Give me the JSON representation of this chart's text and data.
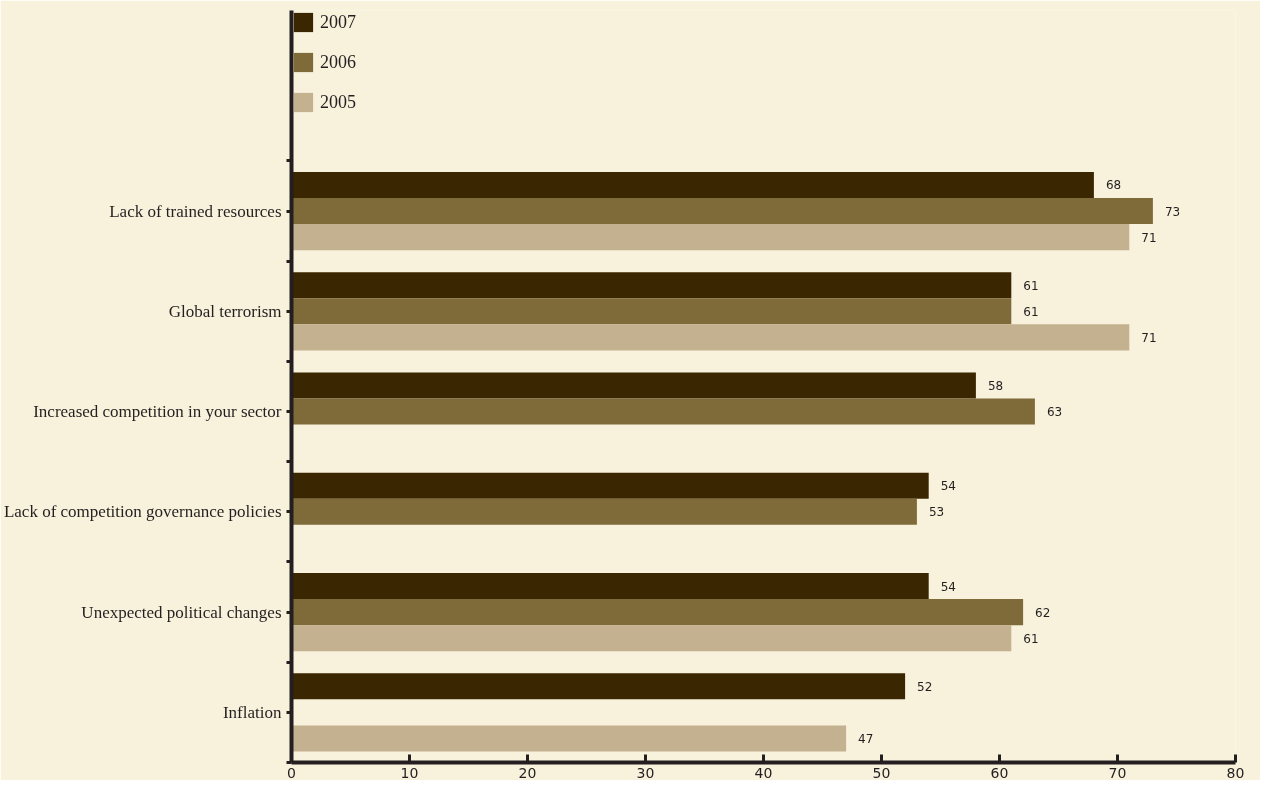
{
  "chart_data": {
    "type": "bar",
    "orientation": "horizontal",
    "categories": [
      "Lack of trained resources",
      "Global terrorism",
      "Increased competition in your sector",
      "Lack of competition governance policies",
      "Unexpected political changes",
      "Inflation"
    ],
    "series": [
      {
        "name": "2007",
        "color": "#3a2600",
        "values": [
          68,
          61,
          58,
          54,
          54,
          52
        ]
      },
      {
        "name": "2006",
        "color": "#7f6a3a",
        "values": [
          73,
          61,
          63,
          53,
          62,
          null
        ]
      },
      {
        "name": "2005",
        "color": "#c4b190",
        "values": [
          71,
          71,
          null,
          null,
          61,
          47
        ]
      }
    ],
    "xlim": [
      0,
      80
    ],
    "xticks": [
      0,
      10,
      20,
      30,
      40,
      50,
      60,
      70,
      80
    ],
    "data_labels": true,
    "grid": false,
    "legend": "top left"
  }
}
